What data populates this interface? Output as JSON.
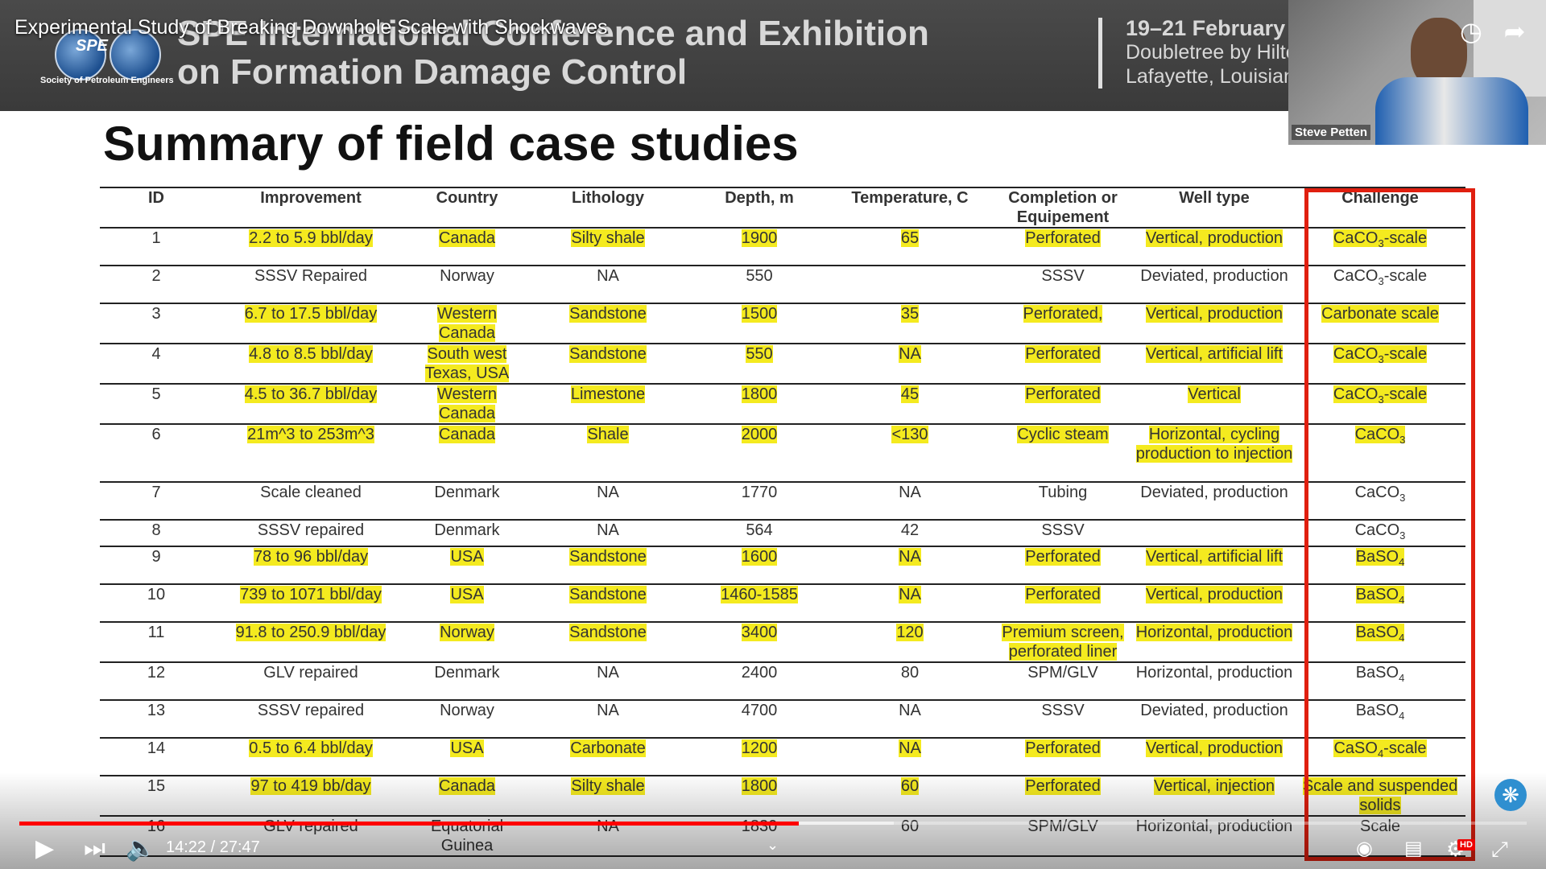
{
  "video": {
    "title": "Experimental Study of Breaking Downhole Scale with Shockwaves",
    "current_time": "14:22",
    "duration": "27:47",
    "time_display": "14:22 / 27:47",
    "progress_fraction": 0.517,
    "hd_label": "HD",
    "accent_color": "#ff0000"
  },
  "slide_header": {
    "logo_text": "SPE",
    "society": "Society of Petroleum Engineers",
    "conference_line1": "SPE International Conference and Exhibition",
    "conference_line2": "on Formation Damage Control",
    "date": "19–21 February",
    "venue_line1": "Doubletree by Hilto",
    "venue_line2": "Lafayette, Louisian"
  },
  "webcam": {
    "name": "Steve Petten"
  },
  "slide": {
    "title": "Summary of field case studies",
    "highlight_color": "#f4ea1f",
    "frame_color": "#e01f0f",
    "columns": [
      "ID",
      "Improvement",
      "Country",
      "Lithology",
      "Depth, m",
      "Temperature, C",
      "Completion or Equipement",
      "Well type",
      "Challenge"
    ],
    "rows": [
      {
        "id": "1",
        "improvement": "2.2 to 5.9 bbl/day",
        "country": "Canada",
        "lithology": "Silty shale",
        "depth": "1900",
        "temperature": "65",
        "completion": "Perforated",
        "well": "Vertical, production",
        "challenge": "CaCO",
        "sub": "3",
        "suffix": "-scale",
        "hl": true
      },
      {
        "id": "2",
        "improvement": "SSSV Repaired",
        "country": "Norway",
        "lithology": "NA",
        "depth": "550",
        "temperature": "",
        "completion": "SSSV",
        "well": "Deviated, production",
        "challenge": "CaCO",
        "sub": "3",
        "suffix": "-scale",
        "hl": false
      },
      {
        "id": "3",
        "improvement": "6.7 to 17.5 bbl/day",
        "country": "Western Canada",
        "lithology": "Sandstone",
        "depth": "1500",
        "temperature": "35",
        "completion": "Perforated,",
        "well": "Vertical, production",
        "challenge": "Carbonate scale",
        "sub": "",
        "suffix": "",
        "hl": true
      },
      {
        "id": "4",
        "improvement": "4.8 to 8.5 bbl/day",
        "country": "South west Texas, USA",
        "lithology": "Sandstone",
        "depth": "550",
        "temperature": "NA",
        "completion": "Perforated",
        "well": "Vertical, artificial lift",
        "challenge": "CaCO",
        "sub": "3",
        "suffix": "-scale",
        "hl": true
      },
      {
        "id": "5",
        "improvement": "4.5 to 36.7 bbl/day",
        "country": "Western Canada",
        "lithology": "Limestone",
        "depth": "1800",
        "temperature": "45",
        "completion": "Perforated",
        "well": "Vertical",
        "challenge": "CaCO",
        "sub": "3",
        "suffix": "-scale",
        "hl": true
      },
      {
        "id": "6",
        "improvement": "21m^3 to 253m^3",
        "country": "Canada",
        "lithology": "Shale",
        "depth": "2000",
        "temperature": "<130",
        "completion": "Cyclic steam",
        "well": "Horizontal, cycling production to injection",
        "challenge": "CaCO",
        "sub": "3",
        "suffix": "",
        "hl": true
      },
      {
        "id": "7",
        "improvement": "Scale cleaned",
        "country": "Denmark",
        "lithology": "NA",
        "depth": "1770",
        "temperature": "NA",
        "completion": "Tubing",
        "well": "Deviated, production",
        "challenge": "CaCO",
        "sub": "3",
        "suffix": "",
        "hl": false
      },
      {
        "id": "8",
        "improvement": "SSSV repaired",
        "country": "Denmark",
        "lithology": "NA",
        "depth": "564",
        "temperature": "42",
        "completion": "SSSV",
        "well": "",
        "challenge": "CaCO",
        "sub": "3",
        "suffix": "",
        "hl": false
      },
      {
        "id": "9",
        "improvement": "78 to 96 bbl/day",
        "country": "USA",
        "lithology": "Sandstone",
        "depth": "1600",
        "temperature": "NA",
        "completion": "Perforated",
        "well": "Vertical, artificial lift",
        "challenge": "BaSO",
        "sub": "4",
        "suffix": "",
        "hl": true
      },
      {
        "id": "10",
        "improvement": "739  to 1071 bbl/day",
        "country": "USA",
        "lithology": "Sandstone",
        "depth": "1460-1585",
        "temperature": "NA",
        "completion": "Perforated",
        "well": "Vertical, production",
        "challenge": "BaSO",
        "sub": "4",
        "suffix": "",
        "hl": true
      },
      {
        "id": "11",
        "improvement": "91.8 to 250.9 bbl/day",
        "country": "Norway",
        "lithology": "Sandstone",
        "depth": "3400",
        "temperature": "120",
        "completion": "Premium screen, perforated liner",
        "well": "Horizontal, production",
        "challenge": "BaSO",
        "sub": "4",
        "suffix": "",
        "hl": true
      },
      {
        "id": "12",
        "improvement": "GLV repaired",
        "country": "Denmark",
        "lithology": "NA",
        "depth": "2400",
        "temperature": "80",
        "completion": "SPM/GLV",
        "well": "Horizontal, production",
        "challenge": "BaSO",
        "sub": "4",
        "suffix": "",
        "hl": false
      },
      {
        "id": "13",
        "improvement": "SSSV repaired",
        "country": "Norway",
        "lithology": "NA",
        "depth": "4700",
        "temperature": "NA",
        "completion": "SSSV",
        "well": "Deviated, production",
        "challenge": "BaSO",
        "sub": "4",
        "suffix": "",
        "hl": false
      },
      {
        "id": "14",
        "improvement": "0.5 to 6.4 bbl/day",
        "country": "USA",
        "lithology": "Carbonate",
        "depth": "1200",
        "temperature": "NA",
        "completion": "Perforated",
        "well": "Vertical, production",
        "challenge": "CaSO",
        "sub": "4",
        "suffix": "-scale",
        "hl": true
      },
      {
        "id": "15",
        "improvement": "97 to 419 bb/day",
        "country": "Canada",
        "lithology": "Silty shale",
        "depth": "1800",
        "temperature": "60",
        "completion": "Perforated",
        "well": "Vertical, injection",
        "challenge": "Scale and suspended solids",
        "sub": "",
        "suffix": "",
        "hl": true
      },
      {
        "id": "16",
        "improvement": "GLV repaired",
        "country": "Equatorial Guinea",
        "lithology": "NA",
        "depth": "1830",
        "temperature": "60",
        "completion": "SPM/GLV",
        "well": "Horizontal, production",
        "challenge": "Scale",
        "sub": "",
        "suffix": "",
        "hl": false
      }
    ]
  }
}
